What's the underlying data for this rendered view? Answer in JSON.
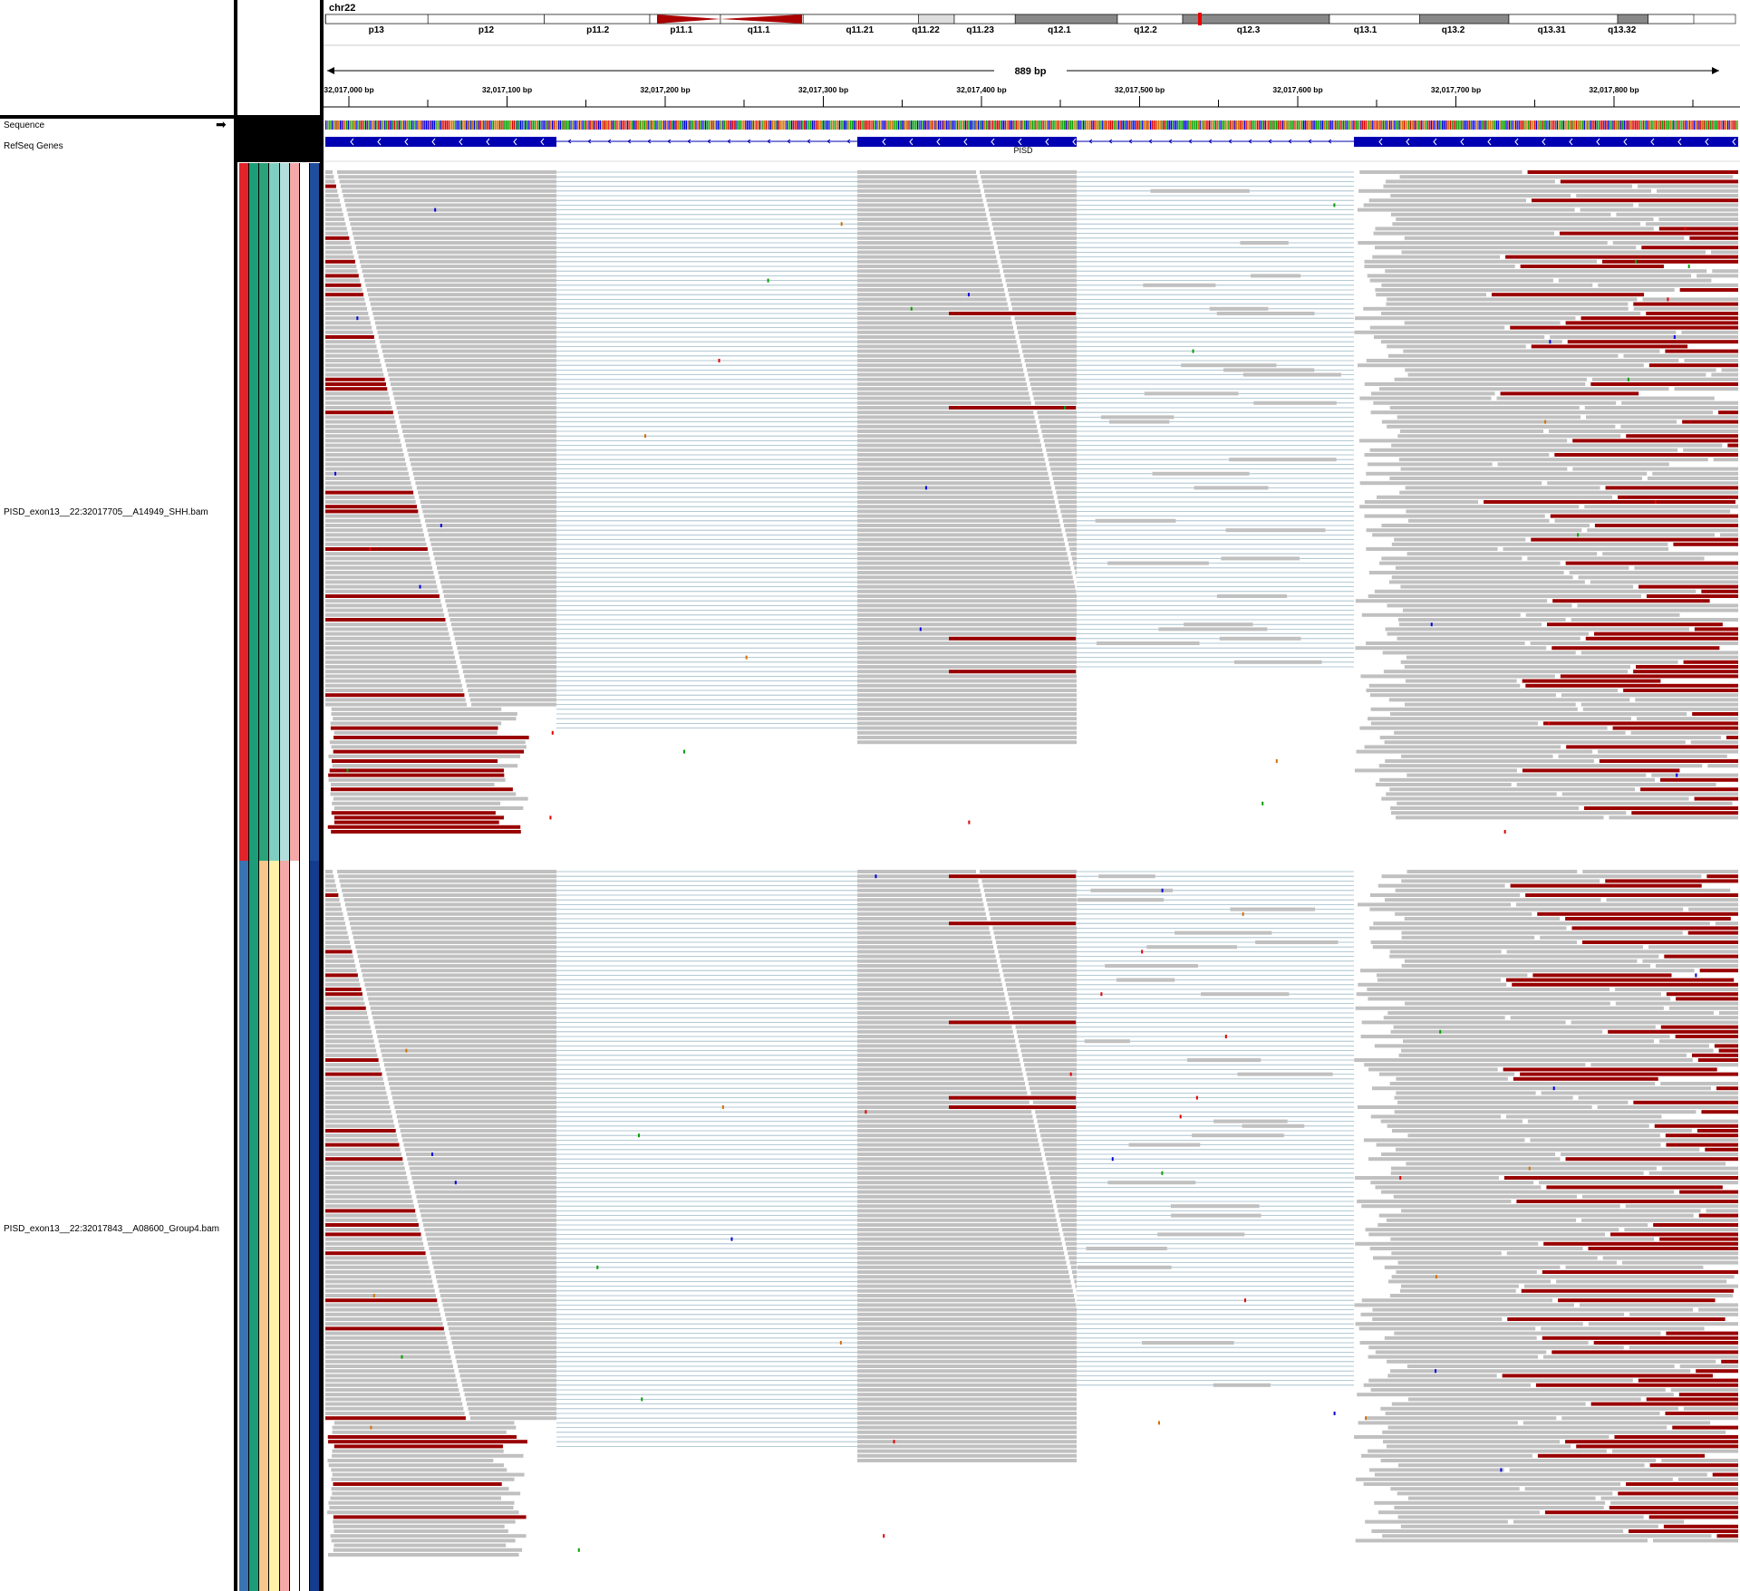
{
  "locus": {
    "chromosome": "chr22",
    "span_label": "889 bp",
    "ruler_ticks": [
      "32,017,000 bp",
      "32,017,100 bp",
      "32,017,200 bp",
      "32,017,300 bp",
      "32,017,400 bp",
      "32,017,500 bp",
      "32,017,600 bp",
      "32,017,700 bp",
      "32,017,800 bp"
    ]
  },
  "ideogram": {
    "bands": [
      "p13",
      "p12",
      "p11.2",
      "p11.1",
      "q11.1",
      "q11.21",
      "q11.22",
      "q11.23",
      "q12.1",
      "q12.2",
      "q12.3",
      "q13.1",
      "q13.2",
      "q13.31",
      "q13.32"
    ]
  },
  "tracks": {
    "sequence": "Sequence",
    "refseq": "RefSeq Genes",
    "gene_label": "PISD",
    "sample1": "PISD_exon13__22:32017705__A14949_SHH.bam",
    "sample2": "PISD_exon13__22:32017843__A08600_Group4.bam"
  },
  "colors": {
    "read": "#c0c0c0",
    "mismatch_pair": "#990000",
    "gene": "#0000b2",
    "splice": "#9ab8c8",
    "sample1_attr": [
      "#e3222a",
      "#1b9e77",
      "#2aa37a",
      "#80cdc1",
      "#b2dfdb",
      "#f4a9a8",
      "#ffffff",
      "#1f4e9c"
    ],
    "sample2_attr": [
      "#3a73b2",
      "#1b9e77",
      "#f5c78a",
      "#fff2a8",
      "#f4a9a8",
      "#ffffff",
      "#ffffff",
      "#143c8c"
    ]
  }
}
